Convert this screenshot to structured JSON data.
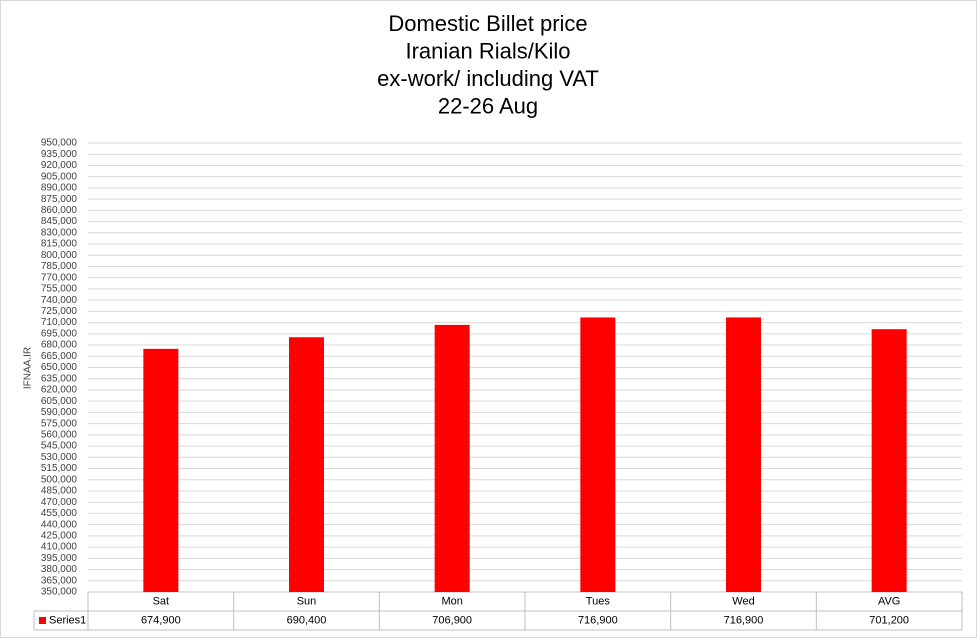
{
  "chart_data": {
    "type": "bar",
    "title": [
      "Domestic  Billet price",
      "Iranian Rials/Kilo",
      "ex-work/ including VAT",
      "22-26 Aug"
    ],
    "y_label": "IFNAA.IR",
    "categories": [
      "Sat",
      "Sun",
      "Mon",
      "Tues",
      "Wed",
      "AVG"
    ],
    "series": [
      {
        "name": "Series1",
        "color": "#ff0000",
        "values": [
          674900,
          690400,
          706900,
          716900,
          716900,
          701200
        ],
        "value_labels": [
          "674,900",
          "690,400",
          "706,900",
          "716,900",
          "716,900",
          "701,200"
        ]
      }
    ],
    "ylim": [
      350000,
      950000
    ],
    "yticks": [
      {
        "value": 350000,
        "label": "350,000"
      },
      {
        "value": 365000,
        "label": "365,000"
      },
      {
        "value": 380000,
        "label": "380,000"
      },
      {
        "value": 395000,
        "label": "395,000"
      },
      {
        "value": 410000,
        "label": "410,000"
      },
      {
        "value": 425000,
        "label": "425,000"
      },
      {
        "value": 440000,
        "label": "440,000"
      },
      {
        "value": 455000,
        "label": "455,000"
      },
      {
        "value": 470000,
        "label": "470,000"
      },
      {
        "value": 485000,
        "label": "485,000"
      },
      {
        "value": 500000,
        "label": "500,000"
      },
      {
        "value": 515000,
        "label": "515,000"
      },
      {
        "value": 530000,
        "label": "530,000"
      },
      {
        "value": 545000,
        "label": "545,000"
      },
      {
        "value": 560000,
        "label": "560,000"
      },
      {
        "value": 575000,
        "label": "575,000"
      },
      {
        "value": 590000,
        "label": "590,000"
      },
      {
        "value": 605000,
        "label": "605,000"
      },
      {
        "value": 620000,
        "label": "620,000"
      },
      {
        "value": 635000,
        "label": "635,000"
      },
      {
        "value": 650000,
        "label": "650,000"
      },
      {
        "value": 665000,
        "label": "665,000"
      },
      {
        "value": 680000,
        "label": "680,000"
      },
      {
        "value": 695000,
        "label": "695,000"
      },
      {
        "value": 710000,
        "label": "710,000"
      },
      {
        "value": 725000,
        "label": "725,000"
      },
      {
        "value": 740000,
        "label": "740,000"
      },
      {
        "value": 755000,
        "label": "755,000"
      },
      {
        "value": 770000,
        "label": "770,000"
      },
      {
        "value": 785000,
        "label": "785,000"
      },
      {
        "value": 800000,
        "label": "800,000"
      },
      {
        "value": 815000,
        "label": "815,000"
      },
      {
        "value": 830000,
        "label": "830,000"
      },
      {
        "value": 845000,
        "label": "845,000"
      },
      {
        "value": 860000,
        "label": "860,000"
      },
      {
        "value": 875000,
        "label": "875,000"
      },
      {
        "value": 890000,
        "label": "890,000"
      },
      {
        "value": 905000,
        "label": "905,000"
      },
      {
        "value": 920000,
        "label": "920,000"
      },
      {
        "value": 935000,
        "label": "935,000"
      },
      {
        "value": 950000,
        "label": "950,000"
      }
    ],
    "grid": true
  }
}
